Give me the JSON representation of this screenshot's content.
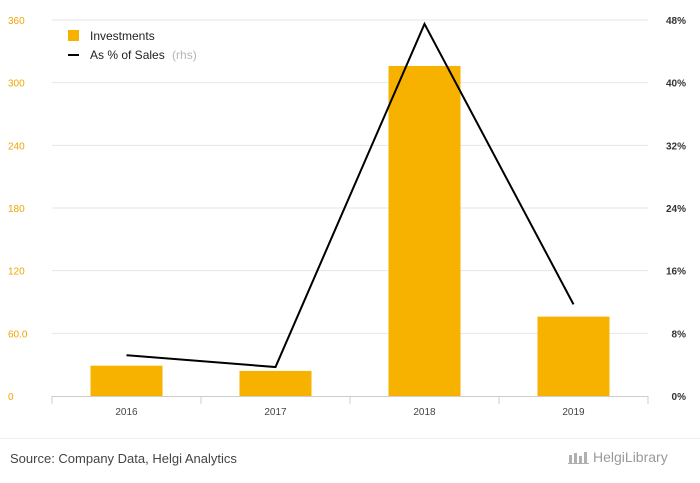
{
  "chart_data": {
    "type": "bar",
    "categories": [
      "2016",
      "2017",
      "2018",
      "2019"
    ],
    "series": [
      {
        "name": "Investments",
        "kind": "bar",
        "axis": "left",
        "color": "#f7b200",
        "values": [
          29,
          24,
          316,
          76
        ]
      },
      {
        "name": "As % of Sales",
        "kind": "line",
        "axis": "right",
        "color": "#000000",
        "values": [
          5.2,
          3.7,
          47.5,
          11.7
        ]
      }
    ],
    "left_axis": {
      "ylim": [
        0,
        360
      ],
      "ticks": [
        "0",
        "60.0",
        "120",
        "180",
        "240",
        "300",
        "360"
      ]
    },
    "right_axis": {
      "ylim": [
        0,
        48
      ],
      "ticks": [
        "0%",
        "8%",
        "16%",
        "24%",
        "32%",
        "40%",
        "48%"
      ]
    },
    "legend": {
      "placement": "top-left",
      "rhs_suffix": "(rhs)"
    },
    "grid": true
  },
  "source": "Source: Company Data, Helgi Analytics",
  "brand": "HelgiLibrary"
}
